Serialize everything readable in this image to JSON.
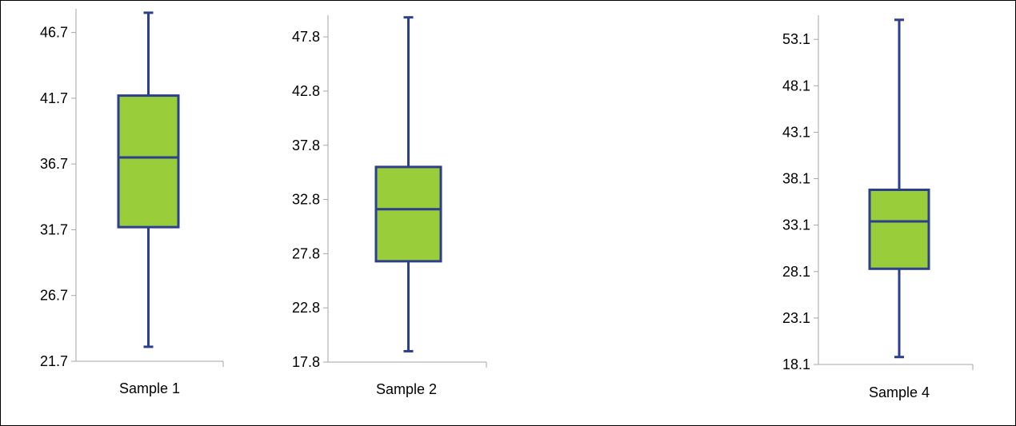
{
  "colors": {
    "box_fill": "#9acd3a",
    "stroke": "#2b3f8c",
    "axis": "#a6a6a6",
    "text": "#000000"
  },
  "chart_data": [
    {
      "type": "box",
      "category": "Sample 1",
      "ylim": [
        21.7,
        48.5
      ],
      "yticks": [
        21.7,
        26.7,
        31.7,
        36.7,
        41.7,
        46.7
      ],
      "ytick_labels": [
        "21.7",
        "26.7",
        "31.7",
        "36.7",
        "41.7",
        "46.7"
      ],
      "min": 22.8,
      "q1": 31.9,
      "median": 37.2,
      "q3": 41.9,
      "max": 48.2
    },
    {
      "type": "box",
      "category": "Sample 2",
      "ylim": [
        17.8,
        49.8
      ],
      "yticks": [
        17.8,
        22.8,
        27.8,
        32.8,
        37.8,
        42.8,
        47.8
      ],
      "ytick_labels": [
        "17.8",
        "22.8",
        "27.8",
        "32.8",
        "37.8",
        "42.8",
        "47.8"
      ],
      "min": 18.8,
      "q1": 27.1,
      "median": 31.9,
      "q3": 35.8,
      "max": 49.6
    },
    {
      "type": "box",
      "category": "Sample 4",
      "ylim": [
        18.1,
        55.7
      ],
      "yticks": [
        18.1,
        23.1,
        28.1,
        33.1,
        38.1,
        43.1,
        48.1,
        53.1
      ],
      "ytick_labels": [
        "18.1",
        "23.1",
        "28.1",
        "33.1",
        "38.1",
        "43.1",
        "48.1",
        "53.1"
      ],
      "min": 18.9,
      "q1": 28.4,
      "median": 33.5,
      "q3": 36.9,
      "max": 55.2
    }
  ]
}
